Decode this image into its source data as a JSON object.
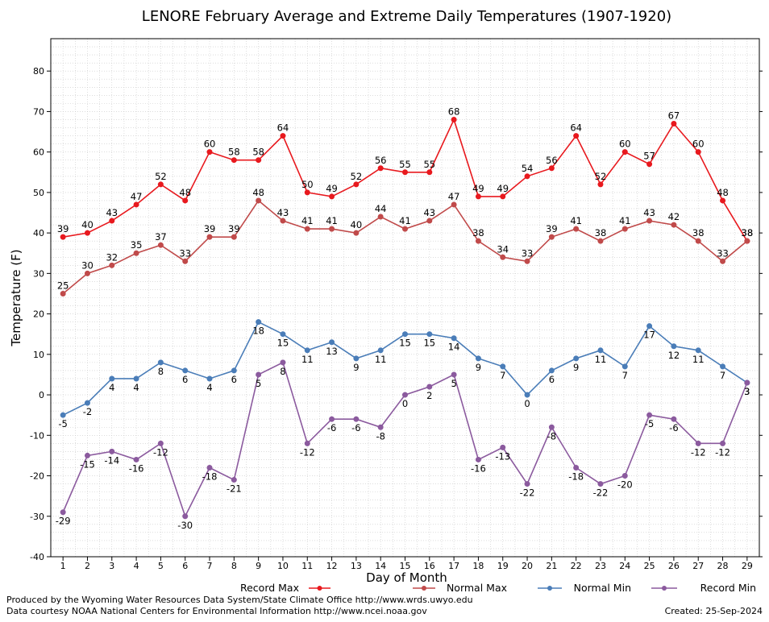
{
  "chart_data": {
    "type": "line",
    "title": "LENORE February Average and Extreme Daily Temperatures (1907-1920)",
    "xlabel": "Day of Month",
    "ylabel": "Temperature (F)",
    "ylim": [
      -40,
      88
    ],
    "yticks": [
      -40,
      -30,
      -20,
      -10,
      0,
      10,
      20,
      30,
      40,
      50,
      60,
      70,
      80
    ],
    "x": [
      1,
      2,
      3,
      4,
      5,
      6,
      7,
      8,
      9,
      10,
      11,
      12,
      13,
      14,
      15,
      16,
      17,
      18,
      19,
      20,
      21,
      22,
      23,
      24,
      25,
      26,
      27,
      28,
      29
    ],
    "grid": true,
    "legend_position": "bottom",
    "series": [
      {
        "name": "Record Max",
        "color": "#e8191e",
        "label_pos": "above",
        "values": [
          39,
          40,
          43,
          47,
          52,
          48,
          60,
          58,
          58,
          64,
          50,
          49,
          52,
          56,
          55,
          55,
          68,
          49,
          49,
          54,
          56,
          64,
          52,
          60,
          57,
          67,
          60,
          48,
          38
        ]
      },
      {
        "name": "Normal Max",
        "color": "#c04a4a",
        "label_pos": "above",
        "values": [
          25,
          30,
          32,
          35,
          37,
          33,
          39,
          39,
          48,
          43,
          41,
          41,
          40,
          44,
          41,
          43,
          47,
          38,
          34,
          33,
          39,
          41,
          38,
          41,
          43,
          42,
          38,
          33,
          38
        ]
      },
      {
        "name": "Normal Min",
        "color": "#4a7db8",
        "label_pos": "below",
        "values": [
          -5,
          -2,
          4,
          4,
          8,
          6,
          4,
          6,
          18,
          15,
          11,
          13,
          9,
          11,
          15,
          15,
          14,
          9,
          7,
          0,
          6,
          9,
          11,
          7,
          17,
          12,
          11,
          7,
          3
        ]
      },
      {
        "name": "Record Min",
        "color": "#8b5a9e",
        "label_pos": "below",
        "values": [
          -29,
          -15,
          -14,
          -16,
          -12,
          -30,
          -18,
          -21,
          5,
          8,
          -12,
          -6,
          -6,
          -8,
          0,
          2,
          5,
          -16,
          -13,
          -22,
          -8,
          -18,
          -22,
          -20,
          -5,
          -6,
          -12,
          -12,
          3
        ]
      }
    ]
  },
  "footer": {
    "left_line1": "Produced by the Wyoming Water Resources Data System/State Climate Office http://www.wrds.uwyo.edu",
    "left_line2": "Data courtesy NOAA National Centers for Environmental Information http://www.ncei.noaa.gov",
    "right": "Created:  25-Sep-2024"
  }
}
